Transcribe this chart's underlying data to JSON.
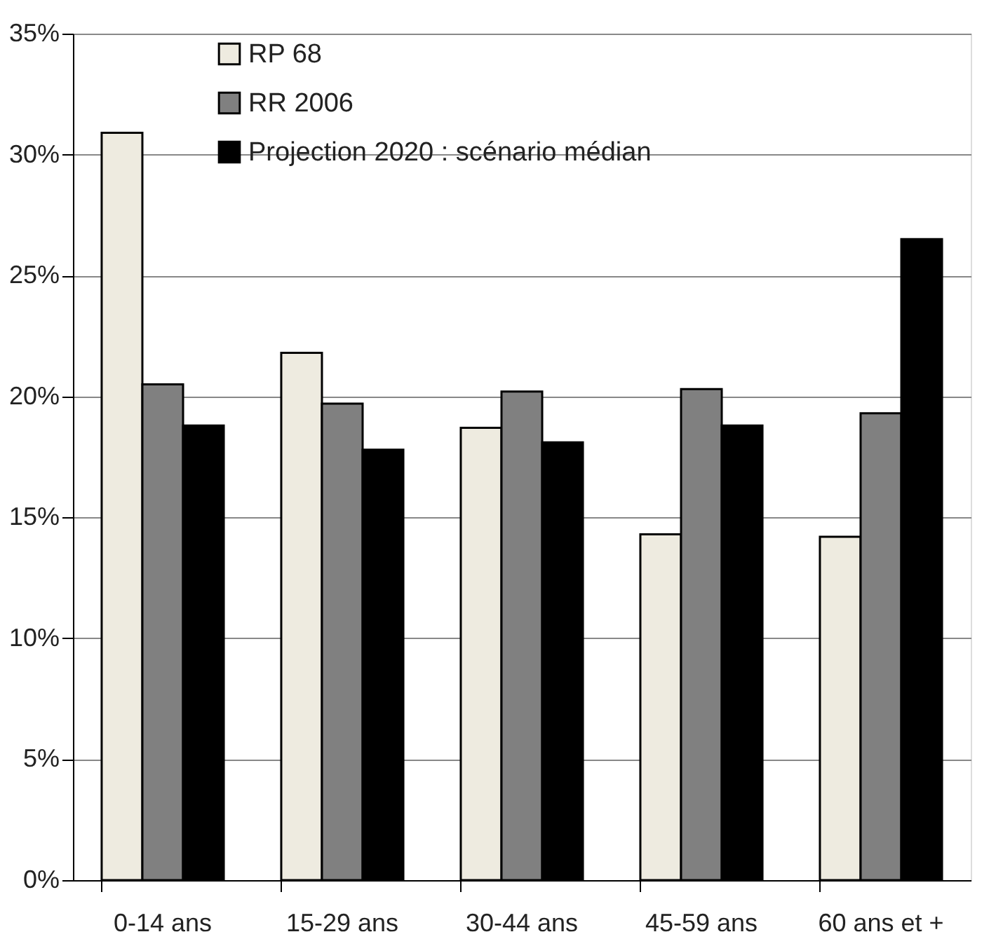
{
  "chart_data": {
    "type": "bar",
    "categories": [
      "0-14 ans",
      "15-29 ans",
      "30-44 ans",
      "45-59 ans",
      "60 ans et +"
    ],
    "series": [
      {
        "name": "RP 68",
        "color": "#eeebe0",
        "values": [
          30.9,
          21.8,
          18.7,
          14.3,
          14.2
        ]
      },
      {
        "name": "RR 2006",
        "color": "#808080",
        "values": [
          20.5,
          19.7,
          20.2,
          20.3,
          19.3
        ]
      },
      {
        "name": "Projection 2020 : scénario médian",
        "color": "#000000",
        "values": [
          18.8,
          17.8,
          18.1,
          18.8,
          26.5
        ]
      }
    ],
    "ylim": [
      0,
      35
    ],
    "yticks": [
      {
        "value": 0,
        "label": "0%"
      },
      {
        "value": 5,
        "label": "5%"
      },
      {
        "value": 10,
        "label": "10%"
      },
      {
        "value": 15,
        "label": "15%"
      },
      {
        "value": 20,
        "label": "20%"
      },
      {
        "value": 25,
        "label": "25%"
      },
      {
        "value": 30,
        "label": "30%"
      },
      {
        "value": 35,
        "label": "35%"
      }
    ],
    "grid": "y",
    "legend": "top"
  }
}
